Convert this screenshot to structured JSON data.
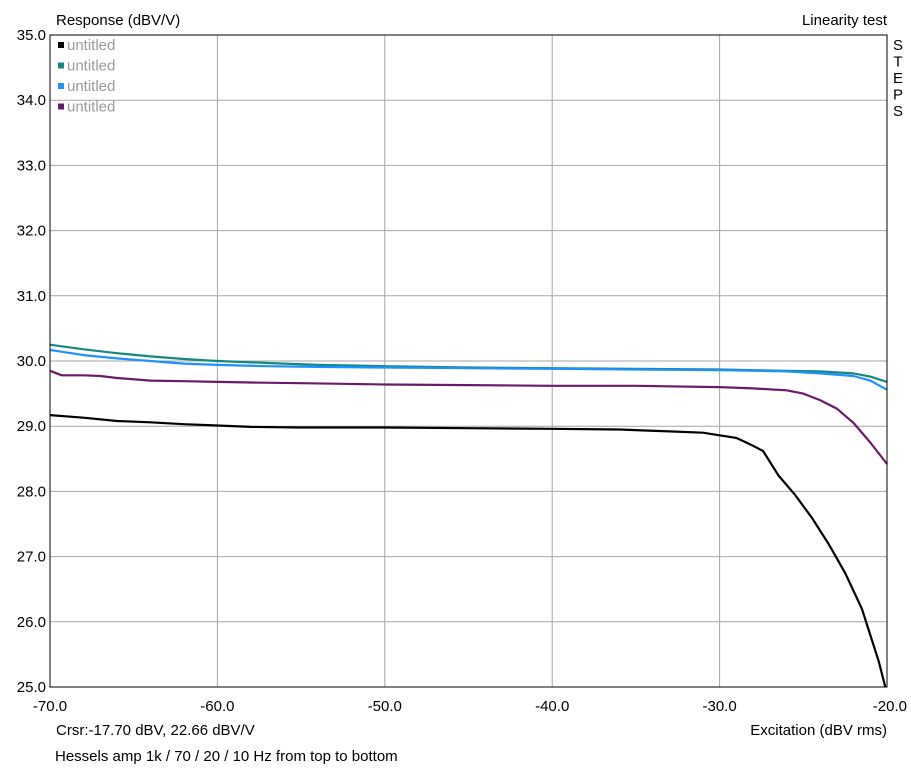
{
  "chart_data": {
    "type": "line",
    "title": "Linearity test",
    "ylabel": "Response (dBV/V)",
    "xlabel": "Excitation (dBV rms)",
    "xlim": [
      -70,
      -20
    ],
    "ylim": [
      25,
      35
    ],
    "x_ticks": [
      "-70.0",
      "-60.0",
      "-50.0",
      "-40.0",
      "-30.0",
      "-20.0"
    ],
    "y_ticks": [
      "25.0",
      "26.0",
      "27.0",
      "28.0",
      "29.0",
      "30.0",
      "31.0",
      "32.0",
      "33.0",
      "34.0",
      "35.0"
    ],
    "grid": true,
    "side_label": "STEPS",
    "cursor_readout": "Crsr:-17.70 dBV, 22.66 dBV/V",
    "legend_position": "top-left",
    "series": [
      {
        "name": "untitled",
        "color": "#000000",
        "points": [
          [
            -70,
            29.17
          ],
          [
            -68,
            29.13
          ],
          [
            -66,
            29.08
          ],
          [
            -64,
            29.06
          ],
          [
            -62,
            29.03
          ],
          [
            -60,
            29.01
          ],
          [
            -58,
            28.99
          ],
          [
            -55,
            28.98
          ],
          [
            -50,
            28.98
          ],
          [
            -45,
            28.97
          ],
          [
            -40,
            28.96
          ],
          [
            -36,
            28.95
          ],
          [
            -33,
            28.92
          ],
          [
            -31,
            28.9
          ],
          [
            -30,
            28.86
          ],
          [
            -29,
            28.82
          ],
          [
            -28,
            28.7
          ],
          [
            -27.4,
            28.62
          ],
          [
            -26.5,
            28.25
          ],
          [
            -25.5,
            27.95
          ],
          [
            -24.5,
            27.6
          ],
          [
            -23.5,
            27.2
          ],
          [
            -22.5,
            26.75
          ],
          [
            -21.5,
            26.2
          ],
          [
            -20.5,
            25.4
          ],
          [
            -20.1,
            25.0
          ]
        ]
      },
      {
        "name": "untitled",
        "color": "#138a80",
        "points": [
          [
            -70,
            30.25
          ],
          [
            -68,
            30.18
          ],
          [
            -66,
            30.12
          ],
          [
            -64,
            30.07
          ],
          [
            -62,
            30.03
          ],
          [
            -60,
            30.0
          ],
          [
            -57,
            29.97
          ],
          [
            -54,
            29.94
          ],
          [
            -50,
            29.92
          ],
          [
            -45,
            29.9
          ],
          [
            -40,
            29.89
          ],
          [
            -35,
            29.88
          ],
          [
            -30,
            29.87
          ],
          [
            -26,
            29.85
          ],
          [
            -24,
            29.84
          ],
          [
            -22,
            29.81
          ],
          [
            -21,
            29.76
          ],
          [
            -20,
            29.68
          ]
        ]
      },
      {
        "name": "untitled",
        "color": "#1e90ff",
        "points": [
          [
            -70,
            30.17
          ],
          [
            -68,
            30.09
          ],
          [
            -66,
            30.04
          ],
          [
            -64,
            30.0
          ],
          [
            -62,
            29.96
          ],
          [
            -60,
            29.94
          ],
          [
            -57,
            29.92
          ],
          [
            -54,
            29.91
          ],
          [
            -50,
            29.9
          ],
          [
            -45,
            29.89
          ],
          [
            -40,
            29.88
          ],
          [
            -35,
            29.87
          ],
          [
            -30,
            29.86
          ],
          [
            -26,
            29.84
          ],
          [
            -24,
            29.81
          ],
          [
            -22,
            29.77
          ],
          [
            -21,
            29.7
          ],
          [
            -20,
            29.56
          ]
        ]
      },
      {
        "name": "untitled",
        "color": "#6a1a6a",
        "points": [
          [
            -70,
            29.85
          ],
          [
            -69.3,
            29.78
          ],
          [
            -68,
            29.78
          ],
          [
            -67,
            29.77
          ],
          [
            -66,
            29.74
          ],
          [
            -64,
            29.7
          ],
          [
            -62,
            29.69
          ],
          [
            -60,
            29.68
          ],
          [
            -58,
            29.67
          ],
          [
            -55,
            29.66
          ],
          [
            -50,
            29.64
          ],
          [
            -45,
            29.63
          ],
          [
            -40,
            29.62
          ],
          [
            -35,
            29.62
          ],
          [
            -30,
            29.6
          ],
          [
            -28,
            29.58
          ],
          [
            -26,
            29.55
          ],
          [
            -25,
            29.5
          ],
          [
            -24,
            29.4
          ],
          [
            -23,
            29.27
          ],
          [
            -22,
            29.05
          ],
          [
            -21,
            28.75
          ],
          [
            -20,
            28.42
          ]
        ]
      }
    ]
  },
  "footer_caption": "Hessels amp  1k / 70 / 20 / 10 Hz from top to bottom"
}
